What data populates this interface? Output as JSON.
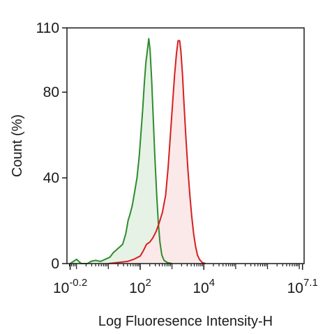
{
  "chart_data": {
    "type": "area",
    "title": "",
    "xlabel": "Log Fluoresence Intensity-H",
    "ylabel": "Count  (%)",
    "x_scale": "log10",
    "xlim": [
      -0.3,
      7.15
    ],
    "ylim": [
      0,
      110
    ],
    "y_ticks": [
      0,
      40,
      80,
      110
    ],
    "x_tick_labels": [
      {
        "base": "10",
        "exp": "-0.2",
        "value": -0.2
      },
      {
        "base": "10",
        "exp": "2",
        "value": 2
      },
      {
        "base": "10",
        "exp": "4",
        "value": 4
      },
      {
        "base": "10",
        "exp": "7.1",
        "value": 7.1
      }
    ],
    "grid": false,
    "legend": "none",
    "series": [
      {
        "color": "#2e8b2e",
        "fill": "#e6f2e6",
        "points": [
          [
            -0.2,
            0
          ],
          [
            0,
            2
          ],
          [
            0.15,
            0
          ],
          [
            0.35,
            0
          ],
          [
            0.45,
            1
          ],
          [
            0.6,
            1.5
          ],
          [
            0.75,
            1
          ],
          [
            0.9,
            2
          ],
          [
            1.05,
            3
          ],
          [
            1.15,
            5
          ],
          [
            1.3,
            7
          ],
          [
            1.45,
            9
          ],
          [
            1.55,
            14
          ],
          [
            1.62,
            20
          ],
          [
            1.68,
            23
          ],
          [
            1.75,
            27
          ],
          [
            1.82,
            33
          ],
          [
            1.9,
            40
          ],
          [
            1.97,
            50
          ],
          [
            2.02,
            60
          ],
          [
            2.08,
            72
          ],
          [
            2.13,
            84
          ],
          [
            2.18,
            94
          ],
          [
            2.23,
            100
          ],
          [
            2.27,
            105
          ],
          [
            2.31,
            100
          ],
          [
            2.36,
            86
          ],
          [
            2.41,
            68
          ],
          [
            2.46,
            50
          ],
          [
            2.52,
            32
          ],
          [
            2.57,
            19
          ],
          [
            2.62,
            10
          ],
          [
            2.68,
            4
          ],
          [
            2.75,
            1.5
          ],
          [
            2.85,
            0.5
          ],
          [
            3.0,
            0
          ]
        ]
      },
      {
        "color": "#d42020",
        "fill": "#fbe8e8",
        "points": [
          [
            1.0,
            0
          ],
          [
            1.3,
            0.5
          ],
          [
            1.6,
            1
          ],
          [
            1.8,
            2
          ],
          [
            2.0,
            3.5
          ],
          [
            2.1,
            6
          ],
          [
            2.2,
            9
          ],
          [
            2.3,
            10
          ],
          [
            2.4,
            12
          ],
          [
            2.5,
            15
          ],
          [
            2.6,
            19
          ],
          [
            2.7,
            24
          ],
          [
            2.8,
            32
          ],
          [
            2.88,
            45
          ],
          [
            2.95,
            60
          ],
          [
            3.02,
            75
          ],
          [
            3.08,
            88
          ],
          [
            3.14,
            98
          ],
          [
            3.19,
            104
          ],
          [
            3.24,
            104
          ],
          [
            3.28,
            99
          ],
          [
            3.33,
            88
          ],
          [
            3.38,
            74
          ],
          [
            3.44,
            58
          ],
          [
            3.5,
            44
          ],
          [
            3.56,
            32
          ],
          [
            3.62,
            22
          ],
          [
            3.68,
            14
          ],
          [
            3.74,
            8
          ],
          [
            3.8,
            4
          ],
          [
            3.86,
            2
          ],
          [
            3.95,
            0.5
          ],
          [
            4.05,
            0
          ]
        ]
      }
    ]
  }
}
